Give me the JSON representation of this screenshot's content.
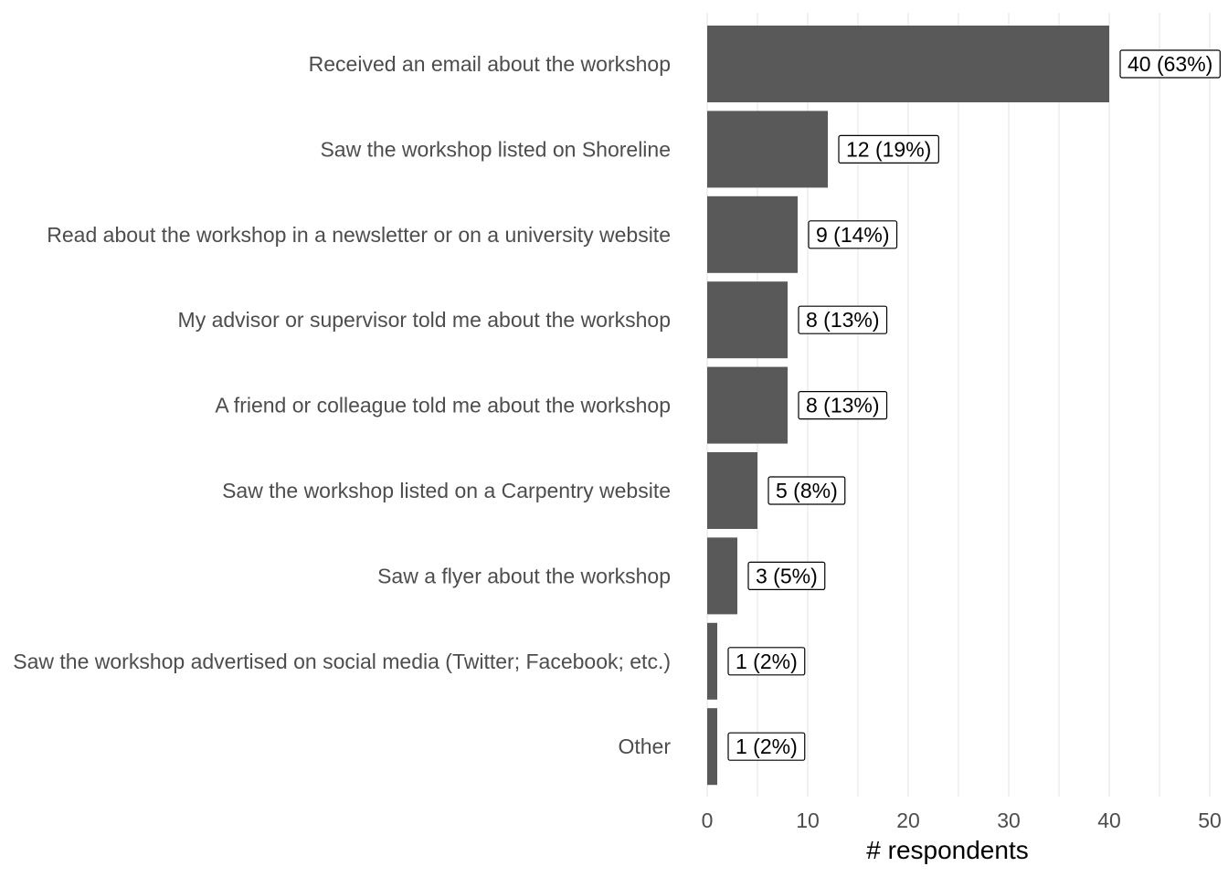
{
  "chart_data": {
    "type": "bar",
    "orientation": "horizontal",
    "categories": [
      "Received an email about the workshop",
      "Saw the workshop listed on Shoreline",
      "Read about the workshop in a newsletter or on a university website",
      "My advisor or supervisor told me about the workshop",
      "A friend or colleague told me about the workshop",
      "Saw the workshop listed on a Carpentry website",
      "Saw a flyer about the workshop",
      "Saw the workshop advertised on social media (Twitter; Facebook; etc.)",
      "Other"
    ],
    "values": [
      40,
      12,
      9,
      8,
      8,
      5,
      3,
      1,
      1
    ],
    "data_labels": [
      "40 (63%)",
      "12 (19%)",
      "9 (14%)",
      "8 (13%)",
      "8 (13%)",
      "5 (8%)",
      "3 (5%)",
      "1 (2%)",
      "1 (2%)"
    ],
    "xlabel": "# respondents",
    "ylabel": "",
    "xlim": [
      0,
      50
    ],
    "x_ticks": [
      0,
      10,
      20,
      30,
      40,
      50
    ],
    "x_tick_labels": [
      "0",
      "10",
      "20",
      "30",
      "40",
      "50"
    ],
    "grid": "vertical",
    "legend": "none",
    "bar_color": "#595959"
  }
}
